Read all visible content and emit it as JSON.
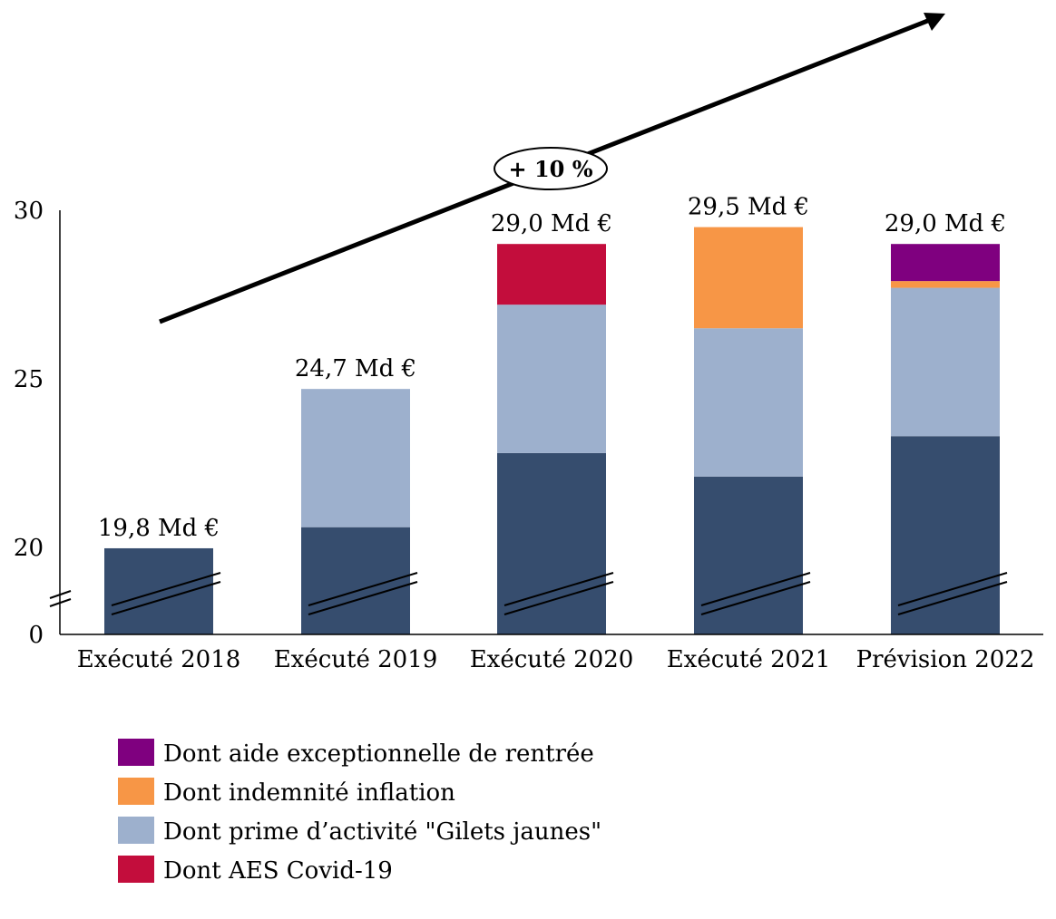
{
  "chart_data": {
    "type": "bar",
    "stacked": true,
    "categories": [
      "Exécuté 2018",
      "Exécuté 2019",
      "Exécuté 2020",
      "Exécuté 2021",
      "Prévision 2022"
    ],
    "series": [
      {
        "values": [
          19.8,
          20.6,
          22.8,
          22.1,
          23.3
        ],
        "color": "#364d6e"
      },
      {
        "name": "Dont prime d’activité \"Gilets jaunes\"",
        "values": [
          0,
          4.1,
          4.4,
          4.4,
          4.4
        ],
        "color": "#9db0cd"
      },
      {
        "name": "Dont AES Covid-19",
        "values": [
          0,
          0,
          1.8,
          0,
          0
        ],
        "color": "#c30d3c"
      },
      {
        "name": "Dont indemnité inflation",
        "values": [
          0,
          0,
          0,
          3.0,
          0.2
        ],
        "color": "#f79646"
      },
      {
        "name": "Dont aide exceptionnelle de rentrée",
        "values": [
          0,
          0,
          0,
          0,
          1.1
        ],
        "color": "#7f007f"
      }
    ],
    "totals_labels": [
      "19,8 Md €",
      "24,7 Md €",
      "29,0 Md €",
      "29,5 Md €",
      "29,0 Md €"
    ],
    "y_ticks": [
      "0",
      "20",
      "25",
      "30"
    ],
    "y_axis_broken": true,
    "ylim": [
      0,
      30
    ],
    "annotation": "+ 10 %",
    "legend_order": [
      "Dont aide exceptionnelle de rentrée",
      "Dont indemnité inflation",
      "Dont prime d’activité \"Gilets jaunes\"",
      "Dont AES Covid-19"
    ],
    "legend_colors": [
      "#7f007f",
      "#f79646",
      "#9db0cd",
      "#c30d3c"
    ],
    "legend_placement": "bottom-left",
    "grid": false
  }
}
